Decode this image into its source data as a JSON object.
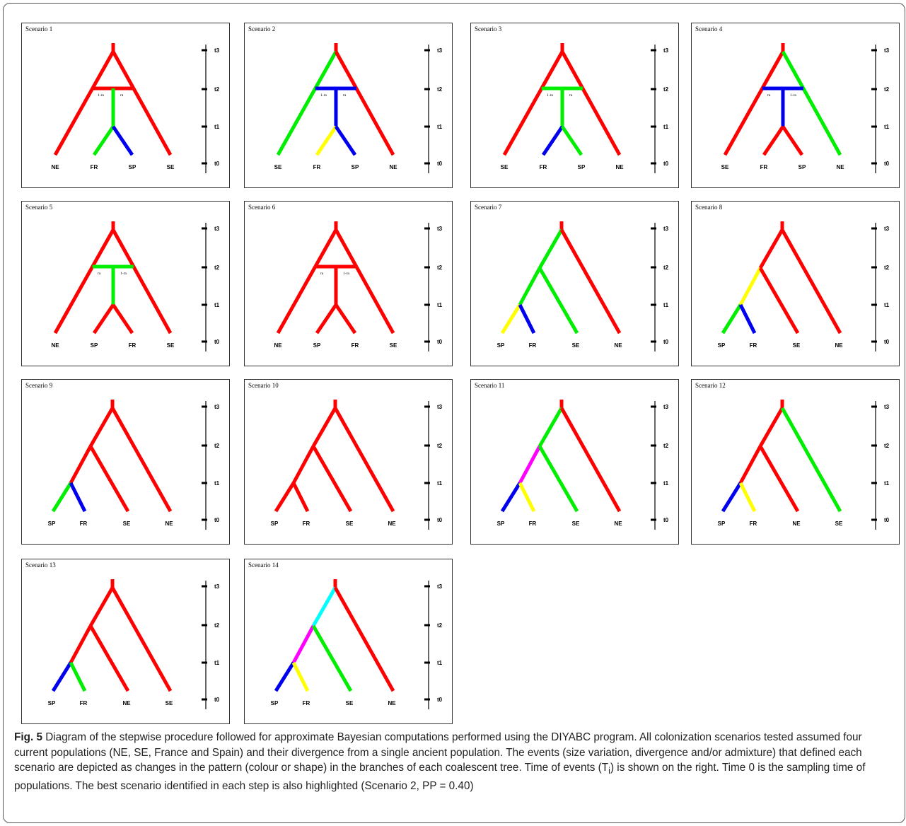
{
  "figure": {
    "label": "Fig. 5",
    "caption_pre": " Diagram of the stepwise procedure followed for approximate Bayesian computations performed using the DIYABC program. All colonization scenarios tested assumed four current populations (NE, SE, France and Spain) and their divergence from a single ancient population. The events (size variation, divergence and/or admixture) that defined each scenario are depicted as changes in the pattern (colour or shape) in the branches of each coalescent tree. Time of events (T",
    "caption_sub": "i",
    "caption_post": ") is shown on the right. Time 0 is the sampling time of populations. The best scenario identified in each step is also highlighted (Scenario 2, PP = 0.40)"
  },
  "colors": {
    "red": "#ff0000",
    "green": "#00ee00",
    "blue": "#0000ee",
    "yellow": "#ffff00",
    "magenta": "#ff00ff",
    "cyan": "#00ffff"
  },
  "time_labels": [
    "t3",
    "t2",
    "t1",
    "t0"
  ],
  "scenarios": [
    {
      "title": "Scenario 1",
      "type": "admix",
      "labels": [
        "NE",
        "FR",
        "SP",
        "SE"
      ],
      "c": {
        "L": "red",
        "R": "red",
        "S": "green",
        "A": "green",
        "B": "blue",
        "hl": "red",
        "hr": "red",
        "trunk": "red"
      },
      "ra": [
        "1-ra",
        "ra"
      ]
    },
    {
      "title": "Scenario 2",
      "type": "admix",
      "labels": [
        "SE",
        "FR",
        "SP",
        "NE"
      ],
      "c": {
        "L": "green",
        "R": "red",
        "S": "blue",
        "A": "yellow",
        "B": "blue",
        "hl": "blue",
        "hr": "blue",
        "trunk": "red"
      },
      "ra": [
        "1-ra",
        "ra"
      ]
    },
    {
      "title": "Scenario 3",
      "type": "admix",
      "labels": [
        "SE",
        "FR",
        "SP",
        "NE"
      ],
      "c": {
        "L": "red",
        "R": "red",
        "S": "green",
        "A": "blue",
        "B": "green",
        "hl": "green",
        "hr": "green",
        "trunk": "red"
      },
      "ra": [
        "1-ra",
        "ra"
      ]
    },
    {
      "title": "Scenario 4",
      "type": "admix",
      "labels": [
        "SE",
        "FR",
        "SP",
        "NE"
      ],
      "c": {
        "L": "red",
        "R": "green",
        "S": "blue",
        "A": "red",
        "B": "red",
        "hl": "blue",
        "hr": "blue",
        "trunk": "red"
      },
      "ra": [
        "ra",
        "1-ra"
      ]
    },
    {
      "title": "Scenario 5",
      "type": "admix",
      "labels": [
        "NE",
        "SP",
        "FR",
        "SE"
      ],
      "c": {
        "L": "red",
        "R": "red",
        "S": "green",
        "A": "red",
        "B": "red",
        "hl": "green",
        "hr": "green",
        "trunk": "red"
      },
      "ra": [
        "ra",
        "1-ra"
      ]
    },
    {
      "title": "Scenario 6",
      "type": "admix",
      "labels": [
        "NE",
        "SP",
        "FR",
        "SE"
      ],
      "c": {
        "L": "red",
        "R": "red",
        "S": "red",
        "A": "red",
        "B": "red",
        "hl": "red",
        "hr": "red",
        "trunk": "red"
      },
      "ra": [
        "ra",
        "1-ra"
      ]
    },
    {
      "title": "Scenario 7",
      "type": "nested",
      "labels": [
        "SP",
        "FR",
        "SE",
        "NE"
      ],
      "c": {
        "trunk": "red",
        "u1": "green",
        "r1": "red",
        "u2": "green",
        "r2": "green",
        "A": "yellow",
        "B": "blue"
      }
    },
    {
      "title": "Scenario 8",
      "type": "nested",
      "labels": [
        "SP",
        "FR",
        "SE",
        "NE"
      ],
      "c": {
        "trunk": "red",
        "u1": "red",
        "r1": "red",
        "u2": "yellow",
        "r2": "red",
        "A": "green",
        "B": "blue"
      }
    },
    {
      "title": "Scenario 9",
      "type": "nested",
      "labels": [
        "SP",
        "FR",
        "SE",
        "NE"
      ],
      "c": {
        "trunk": "red",
        "u1": "red",
        "r1": "red",
        "u2": "red",
        "r2": "red",
        "A": "green",
        "B": "blue"
      }
    },
    {
      "title": "Scenario 10",
      "type": "nested",
      "labels": [
        "SP",
        "FR",
        "SE",
        "NE"
      ],
      "c": {
        "trunk": "red",
        "u1": "red",
        "r1": "red",
        "u2": "red",
        "r2": "red",
        "A": "red",
        "B": "red"
      }
    },
    {
      "title": "Scenario 11",
      "type": "nested",
      "labels": [
        "SP",
        "FR",
        "SE",
        "NE"
      ],
      "c": {
        "trunk": "red",
        "u1": "green",
        "r1": "red",
        "u2": "magenta",
        "r2": "green",
        "A": "blue",
        "B": "yellow"
      }
    },
    {
      "title": "Scenario 12",
      "type": "nested",
      "labels": [
        "SP",
        "FR",
        "NE",
        "SE"
      ],
      "c": {
        "trunk": "red",
        "u1": "red",
        "r1": "green",
        "u2": "red",
        "r2": "red",
        "A": "blue",
        "B": "yellow"
      }
    },
    {
      "title": "Scenario 13",
      "type": "nested",
      "labels": [
        "SP",
        "FR",
        "NE",
        "SE"
      ],
      "c": {
        "trunk": "red",
        "u1": "red",
        "r1": "red",
        "u2": "red",
        "r2": "red",
        "A": "blue",
        "B": "green"
      }
    },
    {
      "title": "Scenario 14",
      "type": "nested",
      "labels": [
        "SP",
        "FR",
        "SE",
        "NE"
      ],
      "c": {
        "trunk": "red",
        "u1": "cyan",
        "r1": "red",
        "u2": "magenta",
        "r2": "green",
        "A": "blue",
        "B": "yellow"
      }
    }
  ]
}
